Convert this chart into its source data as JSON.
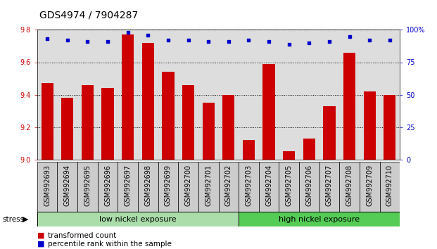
{
  "title": "GDS4974 / 7904287",
  "samples": [
    "GSM992693",
    "GSM992694",
    "GSM992695",
    "GSM992696",
    "GSM992697",
    "GSM992698",
    "GSM992699",
    "GSM992700",
    "GSM992701",
    "GSM992702",
    "GSM992703",
    "GSM992704",
    "GSM992705",
    "GSM992706",
    "GSM992707",
    "GSM992708",
    "GSM992709",
    "GSM992710"
  ],
  "red_values": [
    9.47,
    9.38,
    9.46,
    9.44,
    9.77,
    9.72,
    9.54,
    9.46,
    9.35,
    9.4,
    9.12,
    9.59,
    9.05,
    9.13,
    9.33,
    9.66,
    9.42,
    9.4
  ],
  "blue_values": [
    93,
    92,
    91,
    91,
    98,
    96,
    92,
    92,
    91,
    91,
    92,
    91,
    89,
    90,
    91,
    95,
    92,
    92
  ],
  "ymin": 9.0,
  "ymax": 9.8,
  "y2min": 0,
  "y2max": 100,
  "yticks": [
    9.0,
    9.2,
    9.4,
    9.6,
    9.8
  ],
  "y2ticks": [
    0,
    25,
    50,
    75,
    100
  ],
  "bar_color": "#cc0000",
  "dot_color": "#0000cc",
  "group1_label": "low nickel exposure",
  "group2_label": "high nickel exposure",
  "group1_count": 10,
  "group1_color": "#aaddaa",
  "group2_color": "#55cc55",
  "stress_label": "stress",
  "legend_red": "transformed count",
  "legend_blue": "percentile rank within the sample",
  "title_fontsize": 10,
  "tick_fontsize": 7,
  "bar_width": 0.6,
  "plot_bg": "#dddddd",
  "tick_area_bg": "#cccccc",
  "background_color": "#ffffff"
}
